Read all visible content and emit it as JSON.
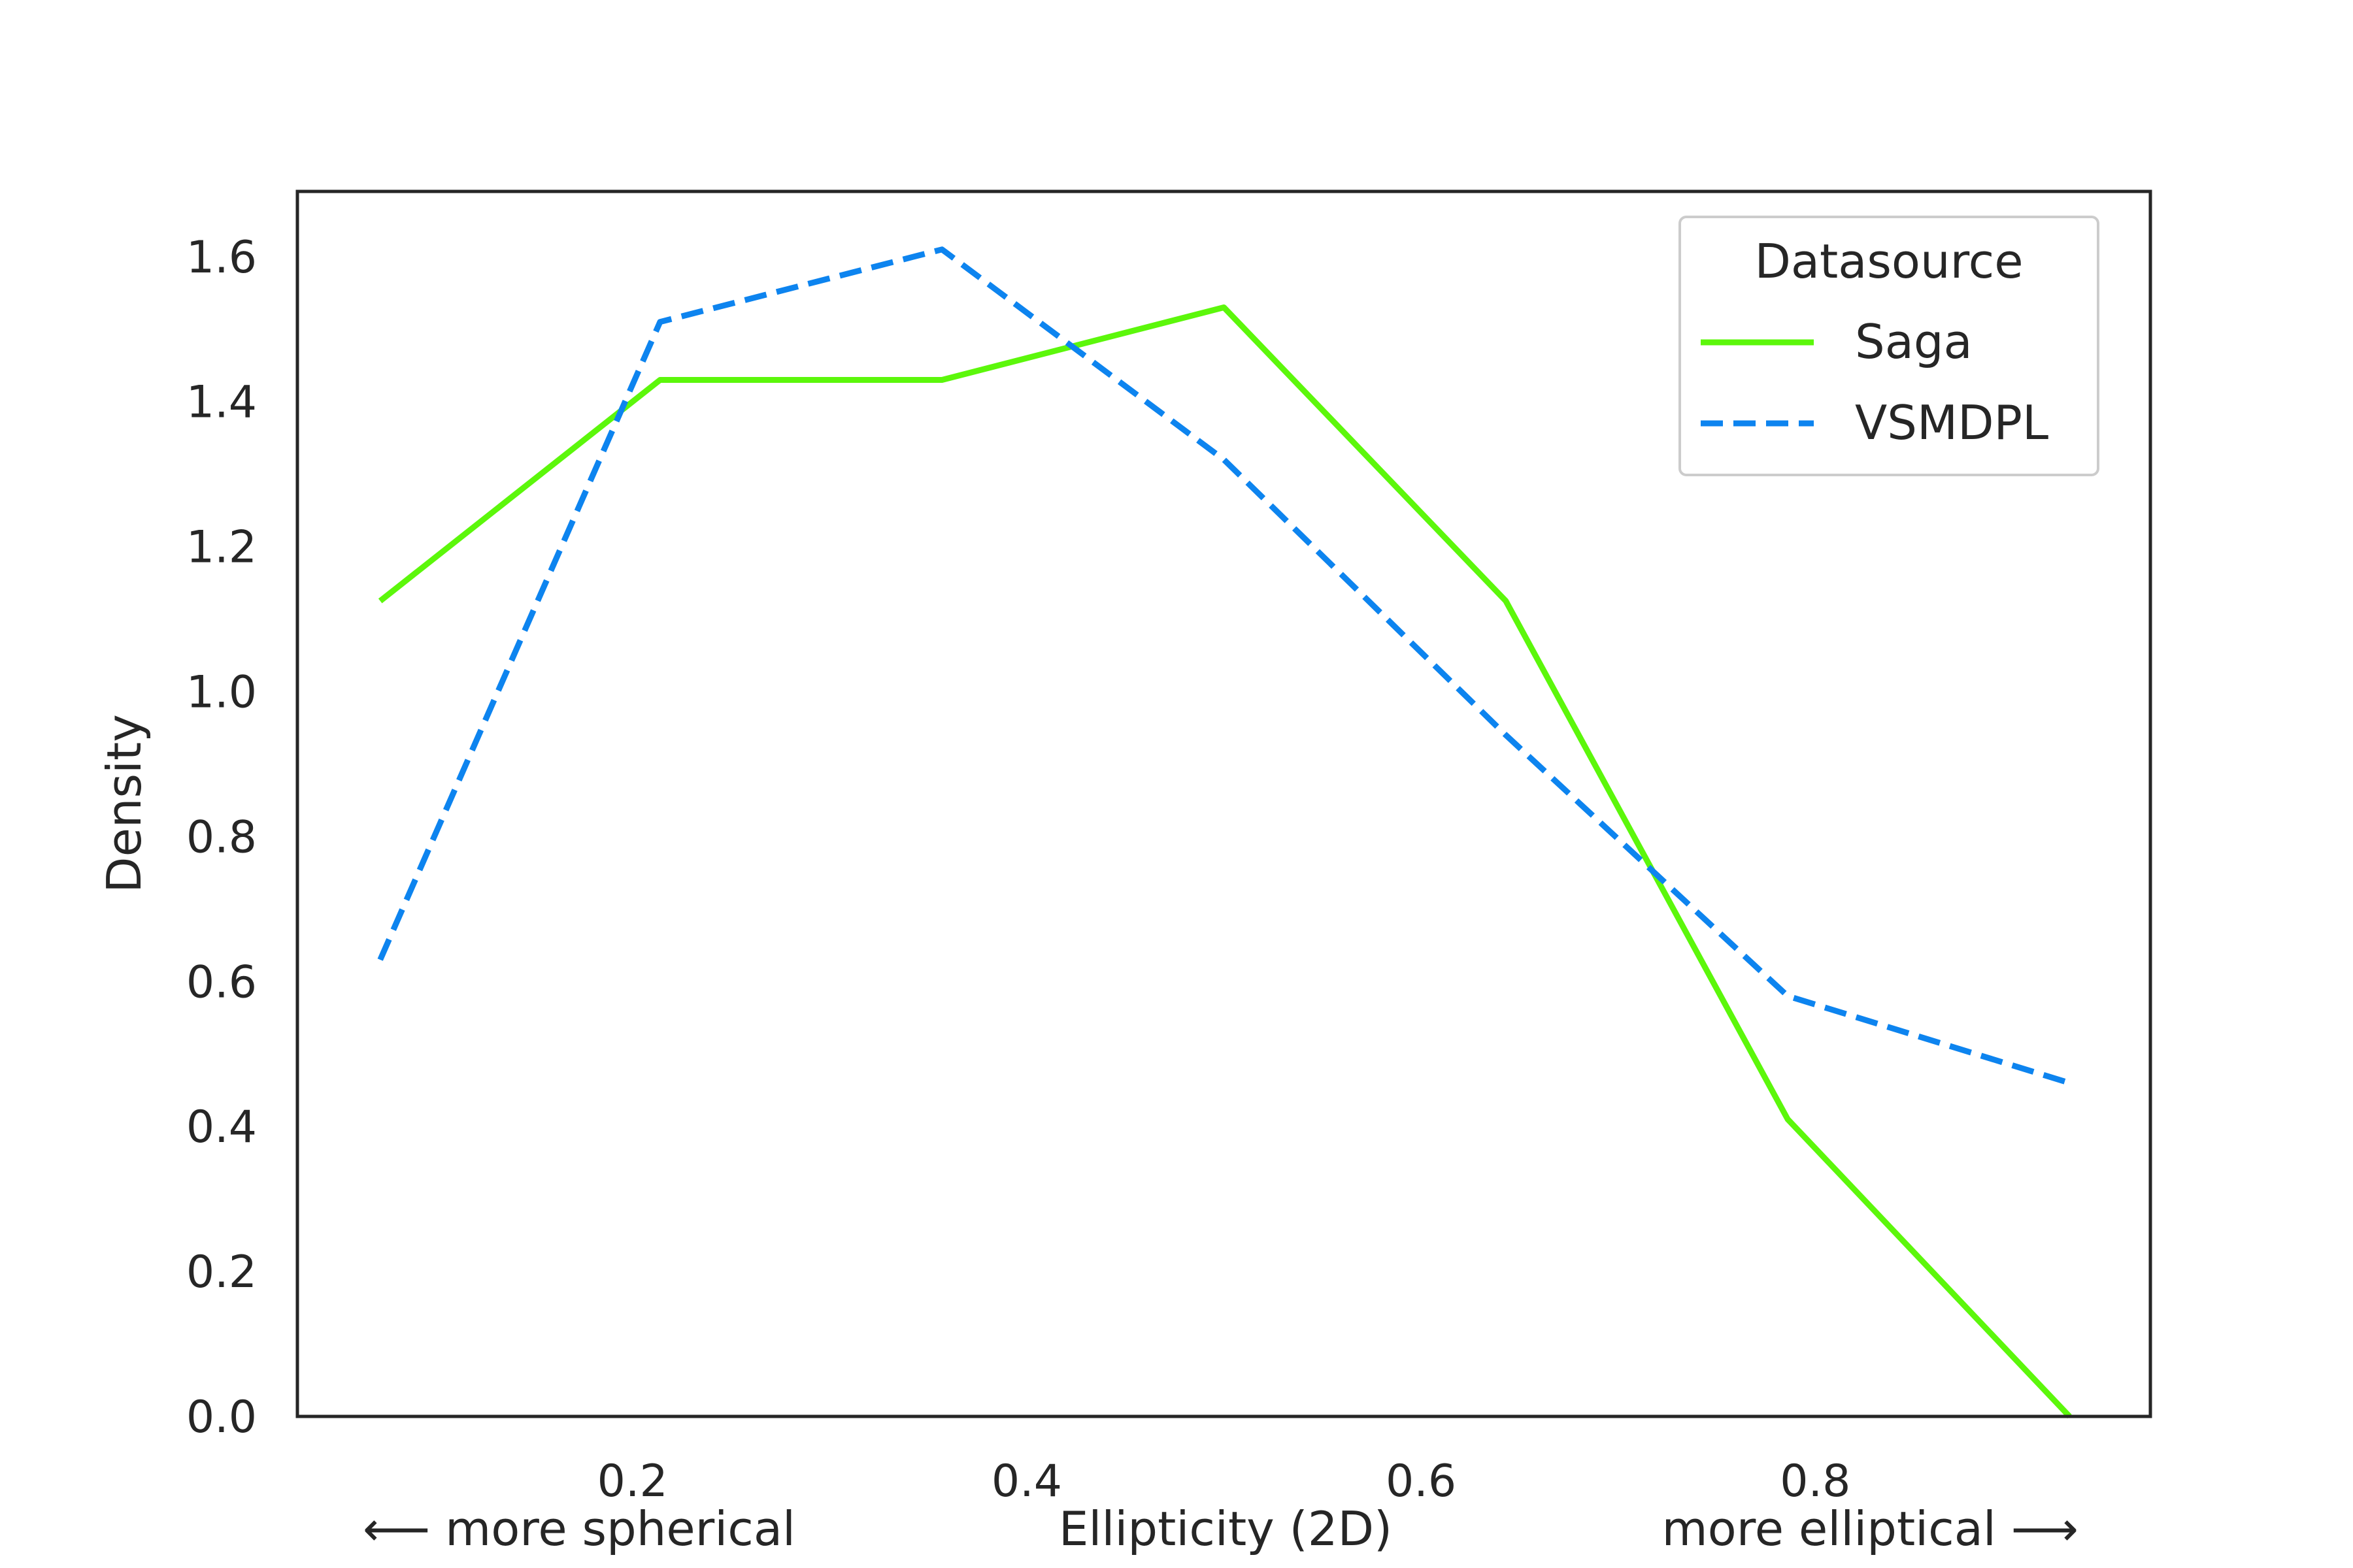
{
  "chart_data": {
    "type": "line",
    "title": "",
    "xlabel": "Ellipticity (2D)",
    "xlabel_left_note": "⟵  more spherical",
    "xlabel_right_note": "more elliptical  ⟶",
    "ylabel": "Density",
    "xlim": [
      0.03,
      0.97
    ],
    "ylim": [
      0.0,
      1.69
    ],
    "xticks": [
      0.2,
      0.4,
      0.6,
      0.8
    ],
    "xtick_labels": [
      "0.2",
      "0.4",
      "0.6",
      "0.8"
    ],
    "yticks": [
      0.0,
      0.2,
      0.4,
      0.6,
      0.8,
      1.0,
      1.2,
      1.4,
      1.6
    ],
    "ytick_labels": [
      "0.0",
      "0.2",
      "0.4",
      "0.6",
      "0.8",
      "1.0",
      "1.2",
      "1.4",
      "1.6"
    ],
    "grid": false,
    "legend": {
      "title": "Datasource",
      "placement": "top-right"
    },
    "series": [
      {
        "name": "Saga",
        "color": "#5cf70b",
        "dash": "solid",
        "x": [
          0.072,
          0.214,
          0.357,
          0.5,
          0.643,
          0.786,
          0.929
        ],
        "y": [
          1.125,
          1.43,
          1.43,
          1.53,
          1.125,
          0.41,
          0.0
        ]
      },
      {
        "name": "VSMDPL",
        "color": "#0d84ef",
        "dash": "dashed",
        "x": [
          0.072,
          0.214,
          0.357,
          0.5,
          0.643,
          0.786,
          0.929
        ],
        "y": [
          0.63,
          1.51,
          1.61,
          1.32,
          0.94,
          0.58,
          0.46
        ]
      }
    ]
  }
}
